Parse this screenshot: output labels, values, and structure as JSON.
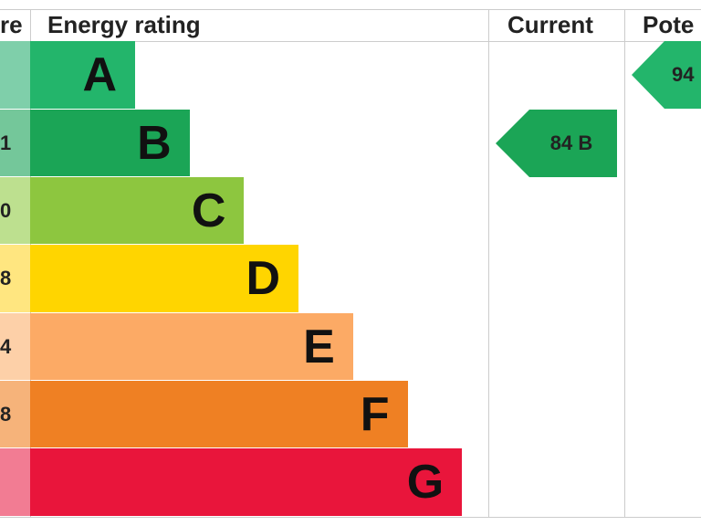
{
  "header": {
    "score": "re",
    "rating": "Energy rating",
    "current": "Current",
    "potential": "Pote"
  },
  "bands": [
    {
      "letter": "A"
    },
    {
      "letter": "B",
      "score": "1"
    },
    {
      "letter": "C",
      "score": "0"
    },
    {
      "letter": "D",
      "score": "8"
    },
    {
      "letter": "E",
      "score": "4"
    },
    {
      "letter": "F",
      "score": "8"
    },
    {
      "letter": "G"
    }
  ],
  "current": {
    "label": "84 B"
  },
  "potential": {
    "label": "94"
  }
}
